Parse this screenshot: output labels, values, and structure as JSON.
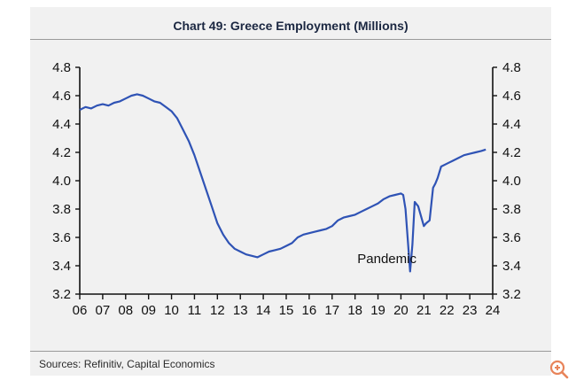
{
  "header": {
    "title": "Chart 49: Greece Employment (Millions)"
  },
  "footer": {
    "sources": "Sources: Refinitiv, Capital Economics"
  },
  "toolbar": {
    "zoom_icon": "zoom-in-icon"
  },
  "colors": {
    "series": "#2f53b5",
    "axis": "#111111",
    "panel": "#f1f1f1",
    "title": "#1b2741",
    "zoom": "#e8845a"
  },
  "chart_data": {
    "type": "line",
    "title": "Chart 49: Greece Employment (Millions)",
    "xlabel": "",
    "ylabel": "",
    "xlim": [
      2006,
      2024
    ],
    "ylim": [
      3.2,
      4.8
    ],
    "x_tick_labels": [
      "06",
      "07",
      "08",
      "09",
      "10",
      "11",
      "12",
      "13",
      "14",
      "15",
      "16",
      "17",
      "18",
      "19",
      "20",
      "21",
      "22",
      "23",
      "24"
    ],
    "y_ticks": [
      3.2,
      3.4,
      3.6,
      3.8,
      4.0,
      4.2,
      4.4,
      4.6,
      4.8
    ],
    "y_tick_labels": [
      "3.2",
      "3.4",
      "3.6",
      "3.8",
      "4.0",
      "4.2",
      "4.4",
      "4.6",
      "4.8"
    ],
    "grid": false,
    "annotations": [
      {
        "text": "Pandemic",
        "x": 2018.1,
        "y": 3.42
      }
    ],
    "series": [
      {
        "name": "Greece Employment",
        "x": [
          2006.0,
          2006.25,
          2006.5,
          2006.75,
          2007.0,
          2007.25,
          2007.5,
          2007.75,
          2008.0,
          2008.25,
          2008.5,
          2008.75,
          2009.0,
          2009.25,
          2009.5,
          2009.75,
          2010.0,
          2010.25,
          2010.5,
          2010.75,
          2011.0,
          2011.25,
          2011.5,
          2011.75,
          2012.0,
          2012.25,
          2012.5,
          2012.75,
          2013.0,
          2013.25,
          2013.5,
          2013.75,
          2014.0,
          2014.25,
          2014.5,
          2014.75,
          2015.0,
          2015.25,
          2015.5,
          2015.75,
          2016.0,
          2016.25,
          2016.5,
          2016.75,
          2017.0,
          2017.25,
          2017.5,
          2017.75,
          2018.0,
          2018.25,
          2018.5,
          2018.75,
          2019.0,
          2019.25,
          2019.5,
          2019.75,
          2020.0,
          2020.1,
          2020.2,
          2020.3,
          2020.4,
          2020.5,
          2020.6,
          2020.75,
          2021.0,
          2021.1,
          2021.25,
          2021.4,
          2021.5,
          2021.6,
          2021.75,
          2022.0,
          2022.25,
          2022.5,
          2022.75,
          2023.0,
          2023.25,
          2023.5,
          2023.7
        ],
        "values": [
          4.5,
          4.52,
          4.51,
          4.53,
          4.54,
          4.53,
          4.55,
          4.56,
          4.58,
          4.6,
          4.61,
          4.6,
          4.58,
          4.56,
          4.55,
          4.52,
          4.49,
          4.44,
          4.36,
          4.28,
          4.18,
          4.06,
          3.94,
          3.82,
          3.7,
          3.62,
          3.56,
          3.52,
          3.5,
          3.48,
          3.47,
          3.46,
          3.48,
          3.5,
          3.51,
          3.52,
          3.54,
          3.56,
          3.6,
          3.62,
          3.63,
          3.64,
          3.65,
          3.66,
          3.68,
          3.72,
          3.74,
          3.75,
          3.76,
          3.78,
          3.8,
          3.82,
          3.84,
          3.87,
          3.89,
          3.9,
          3.91,
          3.9,
          3.8,
          3.58,
          3.36,
          3.55,
          3.85,
          3.82,
          3.68,
          3.7,
          3.72,
          3.95,
          3.98,
          4.02,
          4.1,
          4.12,
          4.14,
          4.16,
          4.18,
          4.19,
          4.2,
          4.21,
          4.22
        ]
      }
    ]
  }
}
